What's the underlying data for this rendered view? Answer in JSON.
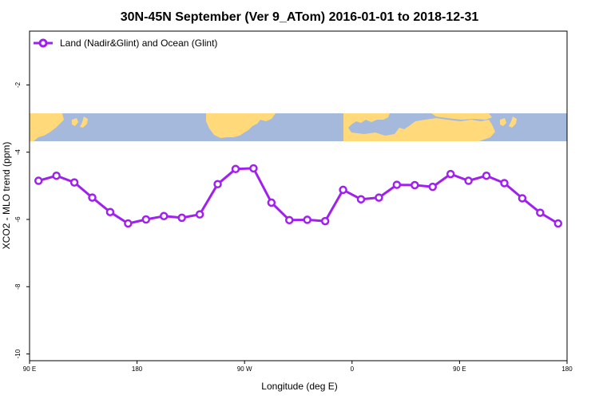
{
  "chart_data": {
    "type": "line",
    "title": "30N-45N September (Ver 9_ATom)   2016-01-01 to 2018-12-31",
    "xlabel": "Longitude (deg E)",
    "ylabel": "XCO2 - MLO trend (ppm)",
    "x_ticks": [
      "90 E",
      "180",
      "90 W",
      "0",
      "90 E",
      "180"
    ],
    "x_tick_values": [
      90,
      180,
      270,
      360,
      450,
      540
    ],
    "xlim": [
      90,
      540
    ],
    "y_ticks": [
      "-2",
      "-4",
      "-6",
      "-8",
      "-10"
    ],
    "y_tick_values": [
      -2,
      -4,
      -6,
      -8,
      -10
    ],
    "ylim": [
      -10.2,
      -0.4
    ],
    "grid": false,
    "legend_position": "top-left",
    "line_color": "#a020f0",
    "map_colors": {
      "ocean": "#a5b9dc",
      "land": "#ffd97a"
    },
    "series": [
      {
        "name": "Land (Nadir&Glint) and Ocean (Glint)",
        "x": [
          97.5,
          112.5,
          127.5,
          142.5,
          157.5,
          172.5,
          187.5,
          202.5,
          217.5,
          232.5,
          247.5,
          262.5,
          277.5,
          292.5,
          307.5,
          322.5,
          337.5,
          352.5,
          367.5,
          382.5,
          397.5,
          412.5,
          427.5,
          442.5,
          457.5,
          472.5,
          487.5,
          502.5,
          517.5,
          532.5
        ],
        "values": [
          -4.85,
          -4.7,
          -4.9,
          -5.35,
          -5.78,
          -6.12,
          -6.0,
          -5.9,
          -5.95,
          -5.85,
          -4.95,
          -4.5,
          -4.48,
          -5.5,
          -6.02,
          -6.01,
          -6.05,
          -5.12,
          -5.4,
          -5.35,
          -4.97,
          -4.98,
          -5.03,
          -4.65,
          -4.85,
          -4.7,
          -4.92,
          -5.37,
          -5.8,
          -6.12
        ]
      }
    ]
  }
}
